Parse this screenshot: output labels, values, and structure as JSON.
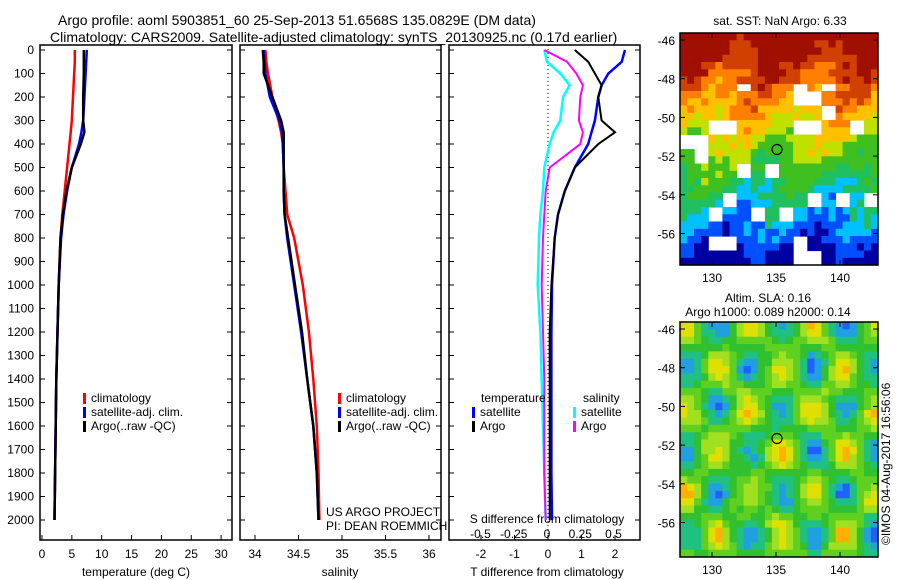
{
  "title_line1": "Argo profile: aoml 5903851_60 25-Sep-2013 51.6568S 135.0829E (DM data)",
  "title_line2": "Climatology: CARS2009. Satellite-adjusted climatology: synTS_20130925.nc (0.17d earlier)",
  "colors": {
    "climatology": "#ff0000",
    "satellite": "#0000ff",
    "argo": "#000000",
    "sal_satellite": "#00ffff",
    "sal_argo": "#ff00ff"
  },
  "chart_data": [
    {
      "type": "line",
      "id": "temperature",
      "xlabel": "temperature (deg C)",
      "xlim": [
        -1,
        31
      ],
      "xticks": [
        "0",
        "5",
        "10",
        "15",
        "20",
        "25",
        "30"
      ],
      "ylim": [
        0,
        2050
      ],
      "yticks": [
        "0",
        "100",
        "200",
        "300",
        "400",
        "500",
        "600",
        "700",
        "800",
        "900",
        "1000",
        "1100",
        "1200",
        "1300",
        "1400",
        "1500",
        "1600",
        "1700",
        "1800",
        "1900",
        "2000"
      ],
      "legend": [
        "climatology",
        "satellite-adj. clim.",
        "Argo(..raw -QC)"
      ],
      "depth": [
        0,
        50,
        100,
        200,
        300,
        350,
        400,
        500,
        600,
        700,
        800,
        1000,
        1200,
        1400,
        1600,
        1800,
        2000
      ],
      "series": [
        {
          "name": "climatology",
          "values": [
            5.5,
            5.5,
            5.4,
            5.2,
            5.0,
            4.8,
            4.6,
            4.2,
            3.8,
            3.4,
            3.1,
            2.8,
            2.6,
            2.4,
            2.3,
            2.2,
            2.1
          ]
        },
        {
          "name": "satellite-adj. clim.",
          "values": [
            7.5,
            7.4,
            7.3,
            7.1,
            6.9,
            6.6,
            6.2,
            5.0,
            4.2,
            3.6,
            3.2,
            2.8,
            2.6,
            2.4,
            2.3,
            2.2,
            2.1
          ]
        },
        {
          "name": "Argo(..raw -QC)",
          "values": [
            7.0,
            7.0,
            7.0,
            6.9,
            6.9,
            7.1,
            6.5,
            5.0,
            4.1,
            3.5,
            3.1,
            2.8,
            2.6,
            2.4,
            2.3,
            2.2,
            2.1
          ]
        }
      ]
    },
    {
      "type": "line",
      "id": "salinity",
      "xlabel": "salinity",
      "xlim": [
        33.83,
        36.1
      ],
      "xticks": [
        "34",
        "34.5",
        "35",
        "35.5",
        "36"
      ],
      "legend": [
        "climatology",
        "satellite-adj. clim.",
        "Argo(..raw -QC)"
      ],
      "annotation": [
        "US ARGO PROJECT",
        "PI: DEAN ROEMMICH"
      ],
      "depth": [
        0,
        50,
        100,
        200,
        300,
        350,
        400,
        500,
        600,
        700,
        800,
        1000,
        1200,
        1400,
        1600,
        1800,
        2000
      ],
      "series": [
        {
          "name": "climatology",
          "values": [
            34.12,
            34.13,
            34.15,
            34.2,
            34.27,
            34.3,
            34.32,
            34.33,
            34.35,
            34.37,
            34.45,
            34.55,
            34.62,
            34.67,
            34.71,
            34.73,
            34.74
          ]
        },
        {
          "name": "satellite-adj. clim.",
          "values": [
            34.1,
            34.11,
            34.12,
            34.17,
            34.28,
            34.31,
            34.32,
            34.33,
            34.33,
            34.34,
            34.37,
            34.45,
            34.53,
            34.6,
            34.67,
            34.71,
            34.73
          ]
        },
        {
          "name": "Argo(..raw -QC)",
          "values": [
            34.09,
            34.1,
            34.1,
            34.2,
            34.3,
            34.33,
            34.33,
            34.33,
            34.33,
            34.34,
            34.38,
            34.46,
            34.54,
            34.6,
            34.67,
            34.71,
            34.73
          ]
        }
      ]
    },
    {
      "type": "line",
      "id": "difference",
      "xlabel": "T difference from climatology",
      "xticks": [
        "-2",
        "-1",
        "0",
        "1",
        "2"
      ],
      "xlim_T": [
        -2.9,
        2.9
      ],
      "x2label": "S difference from climatology",
      "x2ticks": [
        "-0.5",
        "-0.25",
        "0",
        "0.25",
        "0.5"
      ],
      "legend_temperature": {
        "title": "temperature",
        "items": [
          "satellite",
          "Argo"
        ]
      },
      "legend_salinity": {
        "title": "salinity",
        "items": [
          "satellite",
          "Argo"
        ]
      },
      "depth": [
        0,
        50,
        100,
        150,
        200,
        300,
        350,
        400,
        500,
        600,
        700,
        800,
        1000,
        1200,
        1400,
        1600,
        1800,
        2000
      ],
      "series": [
        {
          "name": "temperature satellite",
          "units": "degC",
          "values": [
            2.3,
            2.2,
            1.8,
            1.6,
            1.5,
            1.4,
            1.3,
            1.2,
            0.8,
            0.5,
            0.3,
            0.2,
            0.12,
            0.1,
            0.1,
            0.1,
            0.1,
            0.12
          ]
        },
        {
          "name": "temperature Argo",
          "units": "degC",
          "values": [
            0.8,
            1.2,
            1.4,
            1.6,
            1.5,
            1.6,
            2.0,
            1.5,
            0.8,
            0.5,
            0.3,
            0.2,
            0.1,
            0.05,
            0.05,
            0.05,
            0.05,
            0.05
          ]
        },
        {
          "name": "salinity satellite",
          "units": "psu",
          "values": [
            -0.02,
            0.0,
            0.1,
            0.17,
            0.12,
            0.1,
            0.05,
            0.02,
            -0.02,
            -0.03,
            -0.05,
            -0.06,
            -0.07,
            -0.05,
            -0.04,
            -0.03,
            -0.02,
            -0.01
          ]
        },
        {
          "name": "salinity Argo",
          "units": "psu",
          "values": [
            -0.02,
            0.15,
            0.22,
            0.27,
            0.25,
            0.24,
            0.27,
            0.25,
            0.02,
            -0.01,
            -0.02,
            -0.03,
            -0.04,
            -0.03,
            -0.02,
            -0.02,
            -0.02,
            -0.01
          ]
        }
      ]
    },
    {
      "type": "heatmap",
      "id": "sst-map",
      "title": "sat. SST: NaN Argo: 6.33",
      "xticks": [
        "130",
        "135",
        "140"
      ],
      "yticks": [
        "-46",
        "-48",
        "-50",
        "-52",
        "-54",
        "-56"
      ],
      "marker": {
        "lon": 135.08,
        "lat": -51.66
      }
    },
    {
      "type": "heatmap",
      "id": "sla-map",
      "title_line1": "Altim. SLA: 0.16",
      "title_line2": "Argo h1000: 0.089 h2000: 0.14",
      "xticks": [
        "130",
        "135",
        "140"
      ],
      "yticks": [
        "-46",
        "-48",
        "-50",
        "-52",
        "-54",
        "-56"
      ],
      "marker": {
        "lon": 135.08,
        "lat": -51.66
      }
    }
  ],
  "footer_stamp": "©IMOS 04-Aug-2017 16:56:06"
}
